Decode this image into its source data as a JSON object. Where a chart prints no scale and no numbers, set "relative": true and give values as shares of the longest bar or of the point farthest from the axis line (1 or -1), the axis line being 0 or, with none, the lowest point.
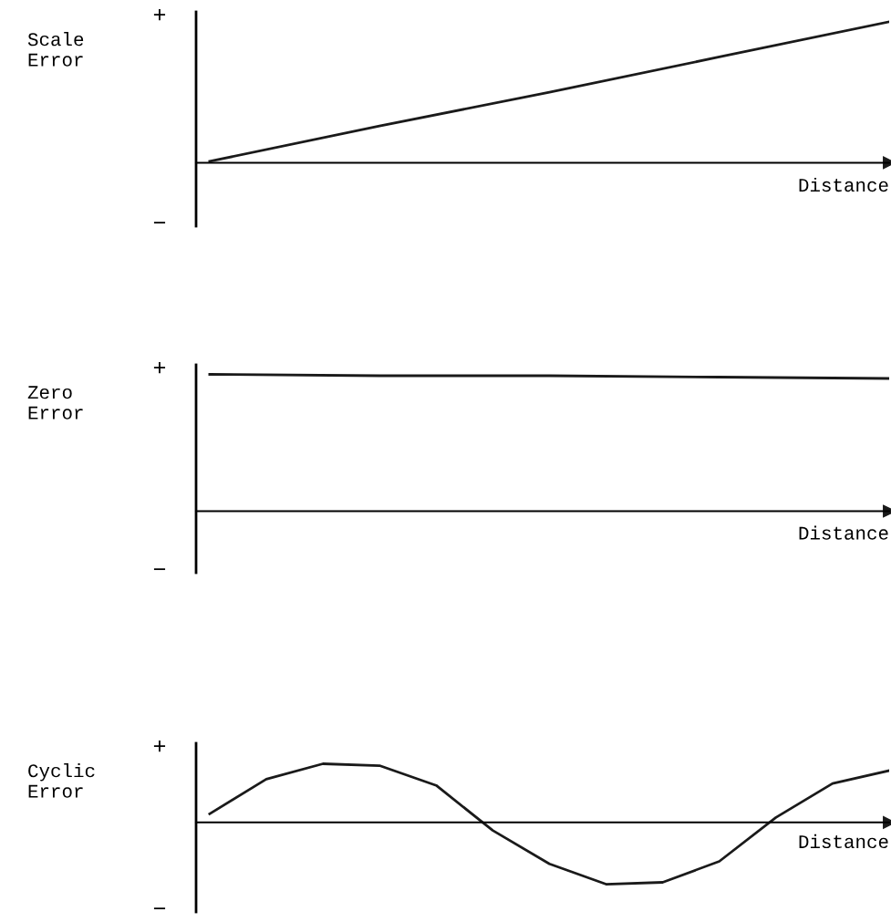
{
  "chart_data": [
    {
      "type": "line",
      "relative": true,
      "ylabel": "Scale\nError",
      "xlabel": "Distance",
      "annotations": [
        "+",
        "−"
      ],
      "categories": [
        null,
        null,
        null,
        null,
        null
      ],
      "series": [
        {
          "color": "#1a1a1a",
          "values": [
            0.01,
            0.26,
            0.5,
            0.75,
            1
          ]
        }
      ]
    },
    {
      "type": "line",
      "relative": true,
      "ylabel": "Zero\nError",
      "xlabel": "Distance",
      "annotations": [
        "+",
        "−"
      ],
      "categories": [
        null,
        null,
        null,
        null,
        null
      ],
      "series": [
        {
          "color": "#1a1a1a",
          "values": [
            1,
            0.99,
            0.99,
            0.98,
            0.97
          ]
        }
      ]
    },
    {
      "type": "line",
      "relative": true,
      "ylabel": "Cyclic\nError",
      "xlabel": "Distance",
      "annotations": [
        "+",
        "−"
      ],
      "categories": [
        null,
        null,
        null,
        null,
        null,
        null,
        null,
        null,
        null,
        null,
        null,
        null,
        null
      ],
      "series": [
        {
          "color": "#1a1a1a",
          "values": [
            0.14,
            0.7,
            0.95,
            0.92,
            0.6,
            -0.13,
            -0.67,
            -1,
            -0.97,
            -0.63,
            0.08,
            0.63,
            0.84
          ]
        }
      ]
    }
  ]
}
